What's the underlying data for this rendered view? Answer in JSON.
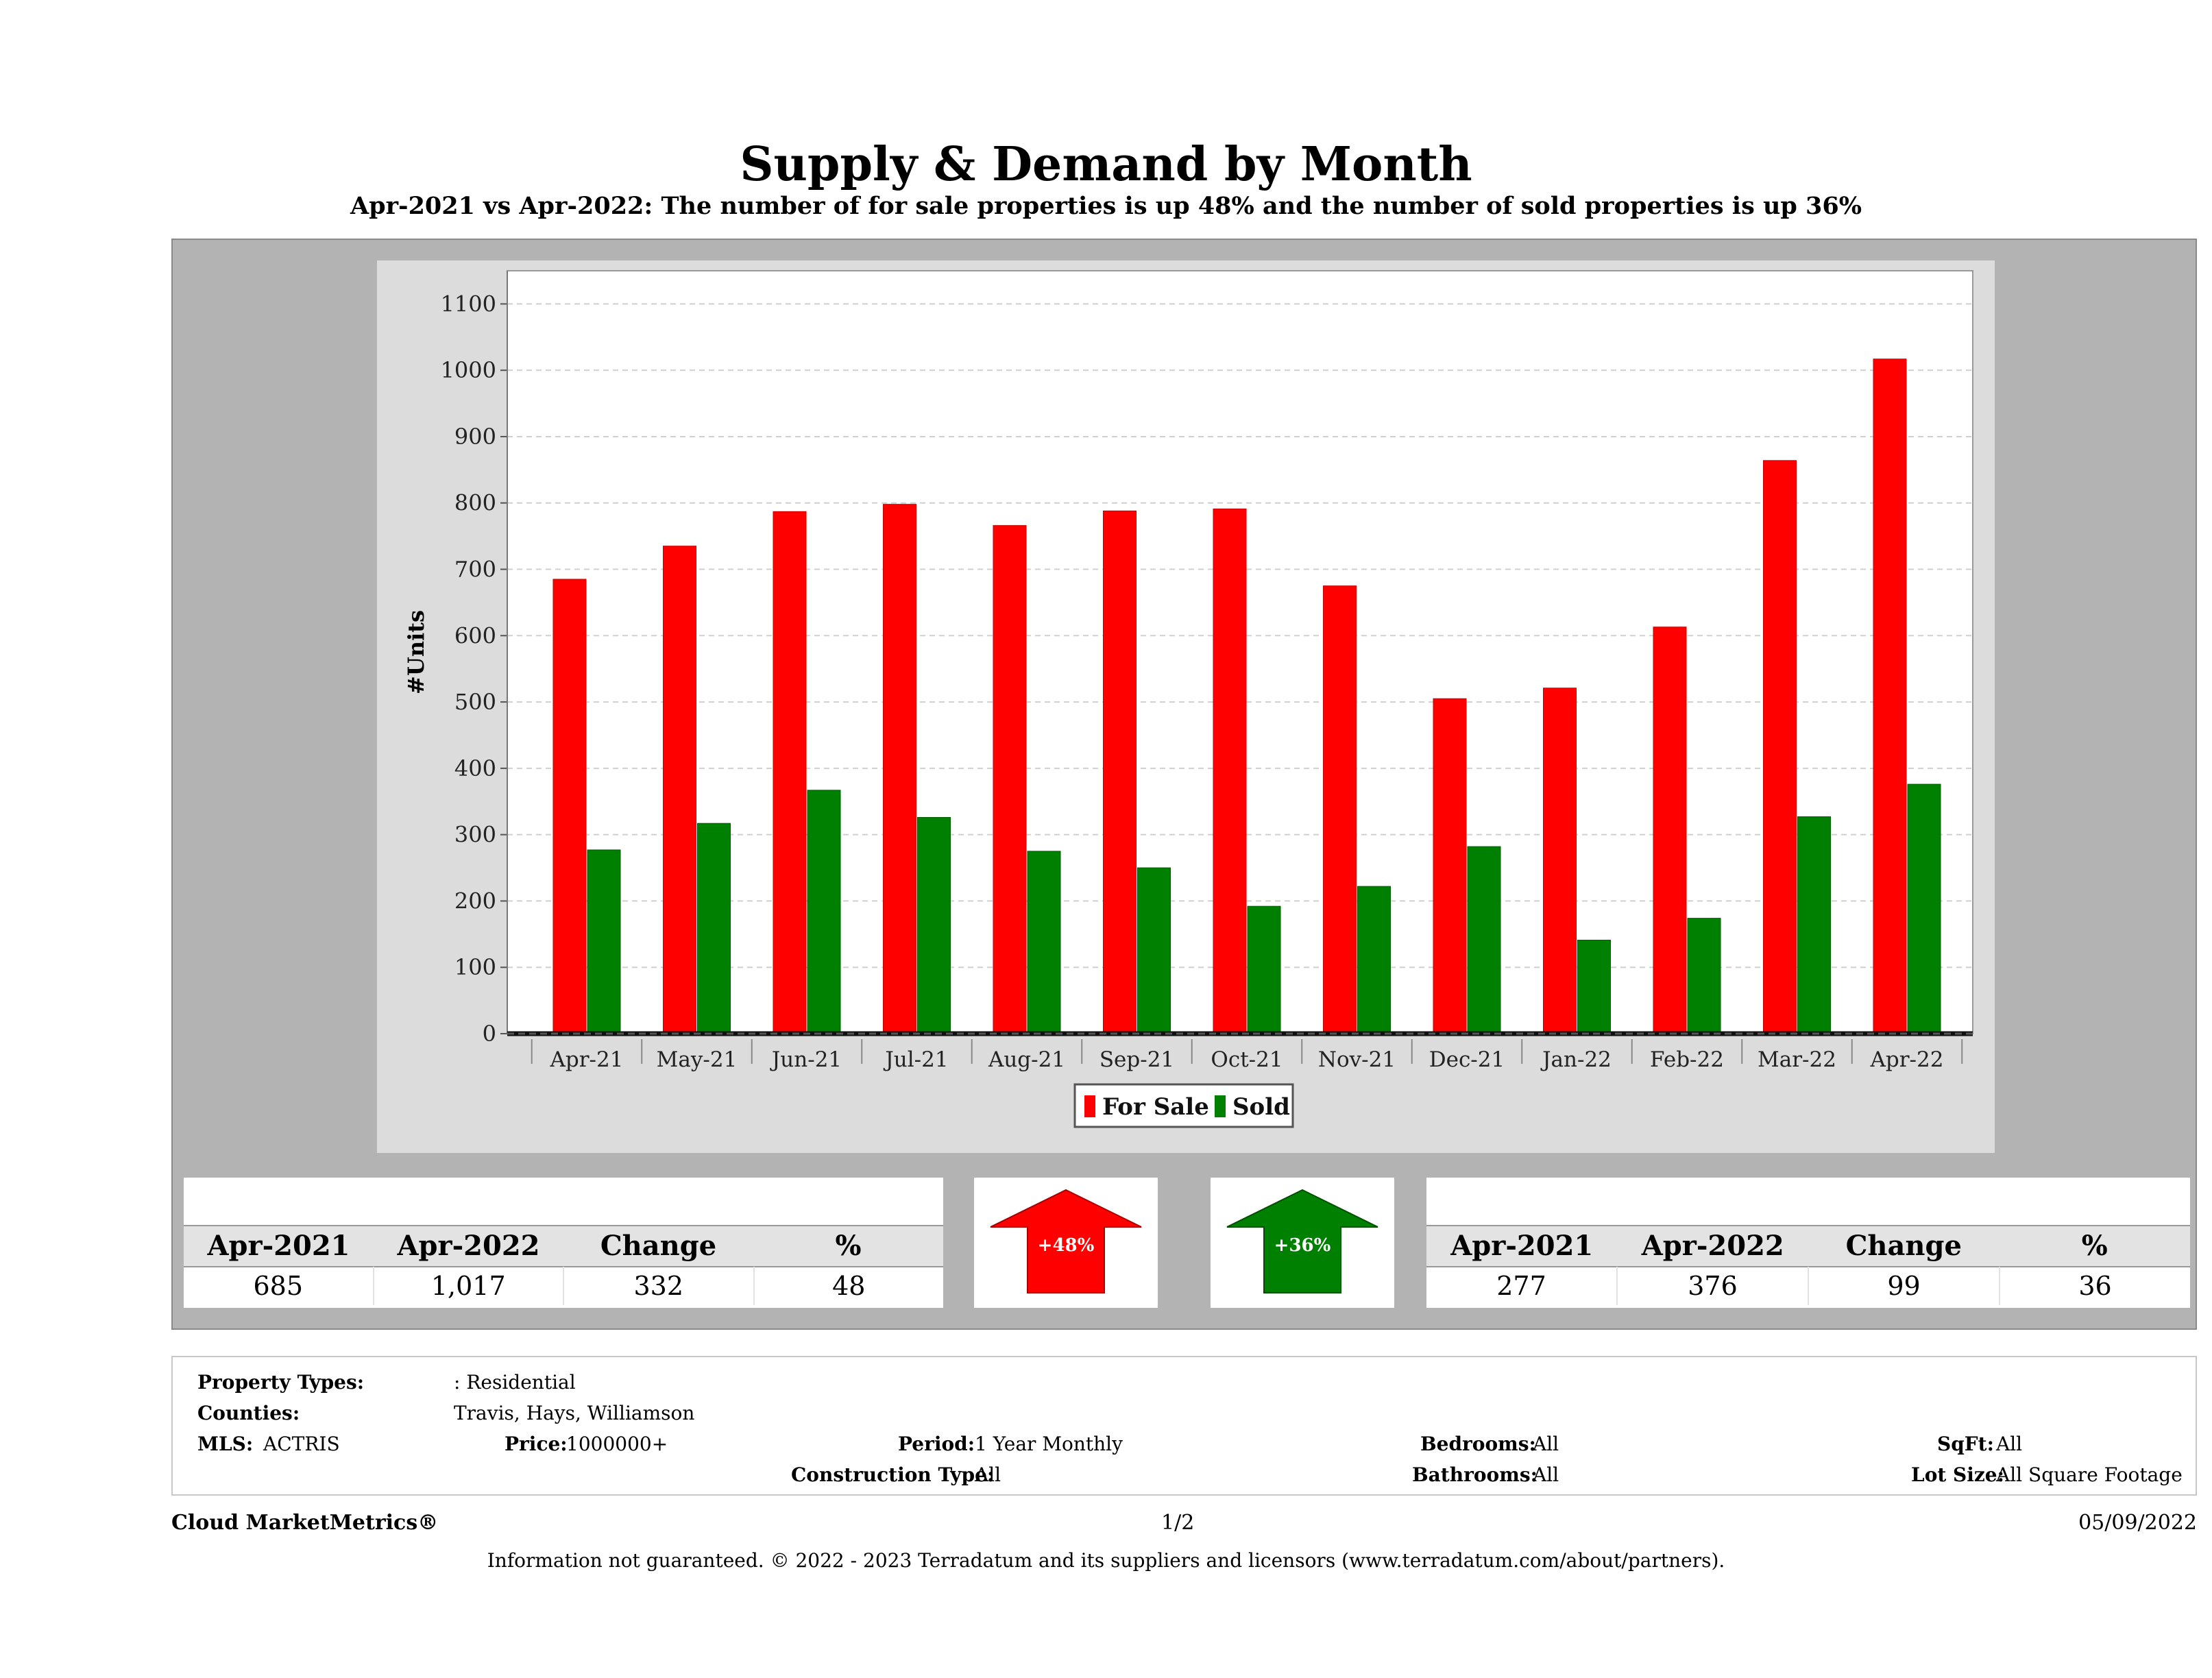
{
  "header": {
    "title": "Supply & Demand by Month",
    "subtitle": "Apr-2021 vs Apr-2022: The number of for sale properties is up 48% and the number of sold properties is up 36%"
  },
  "chart_data": {
    "type": "bar",
    "title": "Supply & Demand by Month",
    "xlabel": "",
    "ylabel": "#Units",
    "ylim": [
      0,
      1150
    ],
    "yticks": [
      0,
      100,
      200,
      300,
      400,
      500,
      600,
      700,
      800,
      900,
      1000,
      1100
    ],
    "categories": [
      "Apr-21",
      "May-21",
      "Jun-21",
      "Jul-21",
      "Aug-21",
      "Sep-21",
      "Oct-21",
      "Nov-21",
      "Dec-21",
      "Jan-22",
      "Feb-22",
      "Mar-22",
      "Apr-22"
    ],
    "series": [
      {
        "name": "For Sale",
        "color": "#ff0000",
        "values": [
          685,
          735,
          787,
          798,
          766,
          788,
          791,
          675,
          505,
          521,
          613,
          864,
          1017
        ]
      },
      {
        "name": "Sold",
        "color": "#008000",
        "values": [
          277,
          317,
          367,
          326,
          275,
          250,
          192,
          222,
          282,
          141,
          174,
          327,
          376
        ]
      }
    ],
    "grid": true,
    "legend": "bottom-center"
  },
  "for_sale_table": {
    "headers": [
      "Apr-2021",
      "Apr-2022",
      "Change",
      "%"
    ],
    "values": [
      "685",
      "1,017",
      "332",
      "48"
    ],
    "arrow_label": "+48%",
    "arrow_color": "#ff0000"
  },
  "sold_table": {
    "headers": [
      "Apr-2021",
      "Apr-2022",
      "Change",
      "%"
    ],
    "values": [
      "277",
      "376",
      "99",
      "36"
    ],
    "arrow_label": "+36%",
    "arrow_color": "#008000"
  },
  "criteria": {
    "property_types_label": "Property Types:",
    "property_types_value": ": Residential",
    "counties_label": "Counties:",
    "counties_value": "Travis, Hays, Williamson",
    "mls_label": "MLS:",
    "mls_value": "ACTRIS",
    "price_label": "Price:",
    "price_value": "1000000+",
    "period_label": "Period:",
    "period_value": "1 Year Monthly",
    "construction_label": "Construction Type:",
    "construction_value": "All",
    "bedrooms_label": "Bedrooms:",
    "bedrooms_value": "All",
    "bathrooms_label": "Bathrooms:",
    "bathrooms_value": "All",
    "sqft_label": "SqFt:",
    "sqft_value": "All",
    "lotsize_label": "Lot Size:",
    "lotsize_value": "All Square Footage"
  },
  "footer": {
    "brand": "Cloud MarketMetrics®",
    "page": "1/2",
    "date": "05/09/2022",
    "disclaimer": "Information not guaranteed. © 2022 - 2023 Terradatum and its suppliers and licensors (www.terradatum.com/about/partners)."
  }
}
